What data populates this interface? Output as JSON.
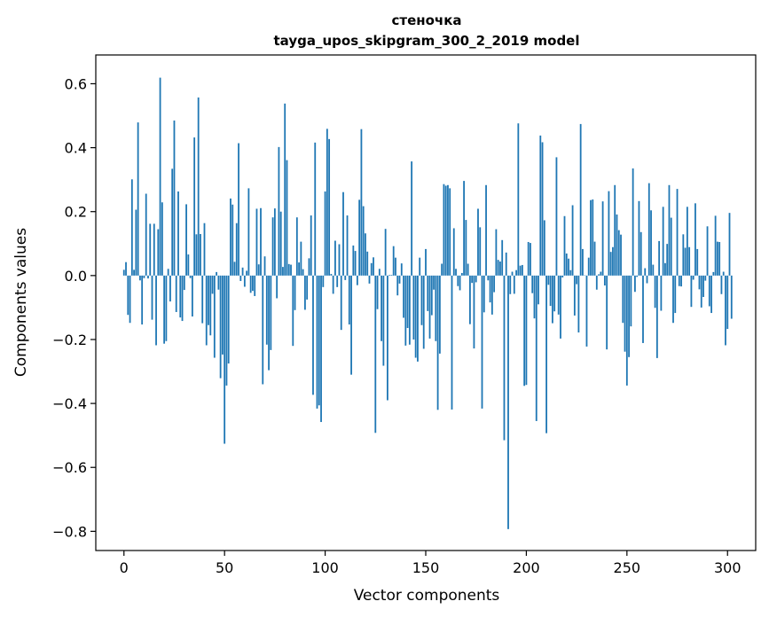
{
  "chart_data": {
    "type": "bar",
    "title": "стеночка",
    "subtitle": "tayga_upos_skipgram_300_2_2019 model",
    "xlabel": "Vector components",
    "ylabel": "Components values",
    "xlim": [
      -14,
      314
    ],
    "ylim": [
      -0.86,
      0.69
    ],
    "xticks": [
      0,
      50,
      100,
      150,
      200,
      250,
      300
    ],
    "xtick_labels": [
      "0",
      "50",
      "100",
      "150",
      "200",
      "250",
      "300"
    ],
    "yticks": [
      -0.8,
      -0.6,
      -0.4,
      -0.2,
      0.0,
      0.2,
      0.4,
      0.6
    ],
    "ytick_labels": [
      "−0.8",
      "−0.6",
      "−0.4",
      "−0.2",
      "0.0",
      "0.2",
      "0.4",
      "0.6"
    ],
    "grid": false,
    "bar_color": "#1f77b4",
    "values": [
      0.018,
      0.042,
      -0.123,
      -0.148,
      0.301,
      0.018,
      0.206,
      0.479,
      -0.015,
      -0.153,
      -0.008,
      0.256,
      -0.009,
      0.162,
      -0.138,
      0.162,
      -0.218,
      0.145,
      0.619,
      0.229,
      -0.213,
      -0.205,
      0.021,
      -0.081,
      0.334,
      0.485,
      -0.114,
      0.263,
      -0.131,
      -0.142,
      -0.045,
      0.223,
      0.066,
      -0.008,
      -0.128,
      0.432,
      0.129,
      0.557,
      0.13,
      -0.149,
      0.164,
      -0.218,
      -0.155,
      -0.187,
      -0.057,
      -0.257,
      0.011,
      -0.044,
      -0.321,
      -0.247,
      -0.526,
      -0.344,
      -0.275,
      0.241,
      0.222,
      0.043,
      0.164,
      0.414,
      -0.017,
      0.025,
      -0.035,
      0.015,
      0.273,
      -0.054,
      -0.048,
      -0.064,
      0.209,
      0.035,
      0.211,
      -0.34,
      0.06,
      -0.216,
      -0.296,
      -0.233,
      0.182,
      0.21,
      -0.071,
      0.402,
      0.2,
      0.027,
      0.538,
      0.361,
      0.036,
      0.034,
      -0.22,
      -0.108,
      0.182,
      0.041,
      0.106,
      0.02,
      -0.107,
      -0.075,
      0.054,
      0.188,
      -0.373,
      0.416,
      -0.416,
      -0.406,
      -0.458,
      -0.036,
      0.263,
      0.459,
      0.427,
      0.005,
      -0.057,
      0.109,
      -0.036,
      0.098,
      -0.17,
      0.261,
      -0.014,
      0.188,
      -0.153,
      -0.31,
      0.094,
      0.077,
      -0.03,
      0.237,
      0.458,
      0.217,
      0.132,
      0.075,
      -0.025,
      0.039,
      0.057,
      -0.492,
      -0.105,
      0.021,
      -0.205,
      -0.282,
      0.146,
      -0.39,
      0.002,
      0.002,
      0.092,
      0.056,
      -0.062,
      -0.025,
      0.038,
      -0.132,
      -0.219,
      -0.164,
      -0.216,
      0.357,
      -0.2,
      -0.257,
      -0.269,
      0.056,
      -0.155,
      -0.229,
      0.083,
      -0.111,
      -0.197,
      -0.124,
      -0.044,
      -0.205,
      -0.42,
      -0.244,
      0.037,
      0.286,
      0.281,
      0.283,
      0.273,
      -0.419,
      0.148,
      0.021,
      -0.033,
      -0.046,
      0.008,
      0.296,
      0.174,
      0.037,
      -0.152,
      -0.023,
      -0.228,
      -0.021,
      0.209,
      0.151,
      -0.416,
      -0.115,
      0.283,
      -0.015,
      -0.084,
      -0.122,
      -0.052,
      0.145,
      0.049,
      0.044,
      0.111,
      -0.515,
      0.072,
      -0.793,
      -0.058,
      0.012,
      -0.057,
      0.017,
      0.476,
      0.031,
      0.033,
      -0.345,
      -0.342,
      0.105,
      0.102,
      -0.055,
      -0.134,
      -0.455,
      -0.09,
      0.438,
      0.417,
      0.173,
      -0.493,
      -0.029,
      -0.095,
      -0.149,
      -0.112,
      0.37,
      -0.122,
      -0.197,
      -0.006,
      0.186,
      0.069,
      0.053,
      0.017,
      0.22,
      -0.125,
      -0.027,
      -0.178,
      0.474,
      0.083,
      0.001,
      -0.222,
      0.056,
      0.236,
      0.238,
      0.106,
      -0.044,
      0.004,
      0.012,
      0.232,
      -0.031,
      -0.231,
      0.264,
      0.074,
      0.089,
      0.283,
      0.191,
      0.142,
      0.128,
      -0.148,
      -0.238,
      -0.344,
      -0.255,
      -0.159,
      0.335,
      -0.051,
      -0.004,
      0.233,
      0.136,
      -0.211,
      0.023,
      -0.024,
      0.289,
      0.204,
      0.034,
      -0.101,
      -0.258,
      0.108,
      -0.11,
      0.215,
      0.039,
      0.099,
      0.283,
      0.181,
      -0.148,
      -0.117,
      0.271,
      -0.033,
      -0.034,
      0.129,
      0.087,
      0.215,
      0.089,
      -0.098,
      -0.013,
      0.226,
      0.083,
      -0.043,
      -0.1,
      -0.067,
      -0.016,
      0.154,
      -0.096,
      -0.117,
      0.011,
      0.187,
      0.106,
      0.105,
      -0.058,
      0.012,
      -0.218,
      -0.167,
      0.196,
      -0.135
    ]
  }
}
